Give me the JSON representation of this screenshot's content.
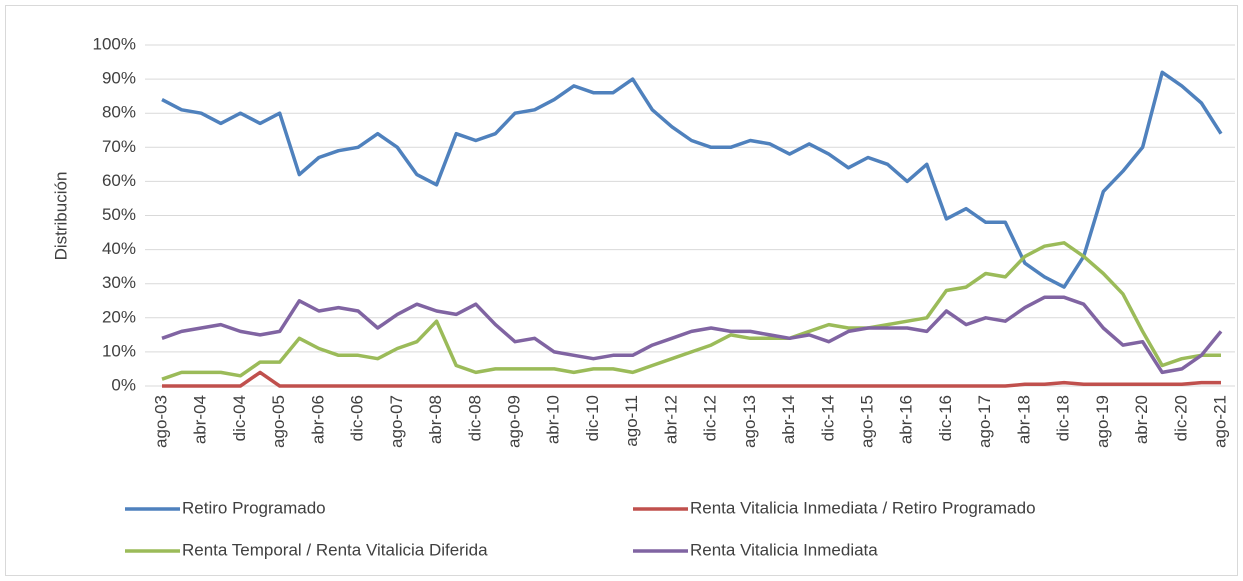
{
  "chart_data": {
    "type": "line",
    "y_label": "Distribución",
    "categories": [
      "ago-03",
      null,
      "abr-04",
      null,
      "dic-04",
      null,
      "ago-05",
      null,
      "abr-06",
      null,
      "dic-06",
      null,
      "ago-07",
      null,
      "abr-08",
      null,
      "dic-08",
      null,
      "ago-09",
      null,
      "abr-10",
      null,
      "dic-10",
      null,
      "ago-11",
      null,
      "abr-12",
      null,
      "dic-12",
      null,
      "ago-13",
      null,
      "abr-14",
      null,
      "dic-14",
      null,
      "ago-15",
      null,
      "abr-16",
      null,
      "dic-16",
      null,
      "ago-17",
      null,
      "abr-18",
      null,
      "dic-18",
      null,
      "ago-19",
      null,
      "abr-20",
      null,
      "dic-20",
      null,
      "ago-21"
    ],
    "series": [
      {
        "name": "Retiro Programado",
        "color": "#4f81bd",
        "values": [
          84,
          81,
          80,
          77,
          80,
          77,
          80,
          62,
          67,
          69,
          70,
          74,
          70,
          62,
          59,
          74,
          72,
          74,
          80,
          81,
          84,
          88,
          86,
          86,
          90,
          81,
          76,
          72,
          70,
          70,
          72,
          71,
          68,
          71,
          68,
          64,
          67,
          65,
          60,
          65,
          49,
          52,
          48,
          48,
          36,
          32,
          29,
          38,
          57,
          63,
          70,
          92,
          88,
          83,
          74
        ]
      },
      {
        "name": "Renta Vitalicia Inmediata / Retiro Programado",
        "color": "#c0504d",
        "values": [
          0,
          0,
          0,
          0,
          0,
          4,
          0,
          0,
          0,
          0,
          0,
          0,
          0,
          0,
          0,
          0,
          0,
          0,
          0,
          0,
          0,
          0,
          0,
          0,
          0,
          0,
          0,
          0,
          0,
          0,
          0,
          0,
          0,
          0,
          0,
          0,
          0,
          0,
          0,
          0,
          0,
          0,
          0,
          0,
          0.5,
          0.5,
          1,
          0.5,
          0.5,
          0.5,
          0.5,
          0.5,
          0.5,
          1,
          1
        ]
      },
      {
        "name": "Renta Temporal / Renta Vitalicia Diferida",
        "color": "#9bbb59",
        "values": [
          2,
          4,
          4,
          4,
          3,
          7,
          7,
          14,
          11,
          9,
          9,
          8,
          11,
          13,
          19,
          6,
          4,
          5,
          5,
          5,
          5,
          4,
          5,
          5,
          4,
          6,
          8,
          10,
          12,
          15,
          14,
          14,
          14,
          16,
          18,
          17,
          17,
          18,
          19,
          20,
          28,
          29,
          33,
          32,
          38,
          41,
          42,
          38,
          33,
          27,
          16,
          6,
          8,
          9,
          9
        ]
      },
      {
        "name": "Renta Vitalicia Inmediata",
        "color": "#8064a2",
        "values": [
          14,
          16,
          17,
          18,
          16,
          15,
          16,
          25,
          22,
          23,
          22,
          17,
          21,
          24,
          22,
          21,
          24,
          18,
          13,
          14,
          10,
          9,
          8,
          9,
          9,
          12,
          14,
          16,
          17,
          16,
          16,
          15,
          14,
          15,
          13,
          16,
          17,
          17,
          17,
          16,
          22,
          18,
          20,
          19,
          23,
          26,
          26,
          24,
          17,
          12,
          13,
          4,
          5,
          9,
          16
        ]
      }
    ],
    "ylim": [
      0,
      100
    ],
    "yticks": [
      {
        "value": 0,
        "label": "0%"
      },
      {
        "value": 10,
        "label": "10%"
      },
      {
        "value": 20,
        "label": "20%"
      },
      {
        "value": 30,
        "label": "30%"
      },
      {
        "value": 40,
        "label": "40%"
      },
      {
        "value": 50,
        "label": "50%"
      },
      {
        "value": 60,
        "label": "60%"
      },
      {
        "value": 70,
        "label": "70%"
      },
      {
        "value": 80,
        "label": "80%"
      },
      {
        "value": 90,
        "label": "90%"
      },
      {
        "value": 100,
        "label": "100%"
      }
    ],
    "grid": true,
    "legend": "bottom"
  }
}
